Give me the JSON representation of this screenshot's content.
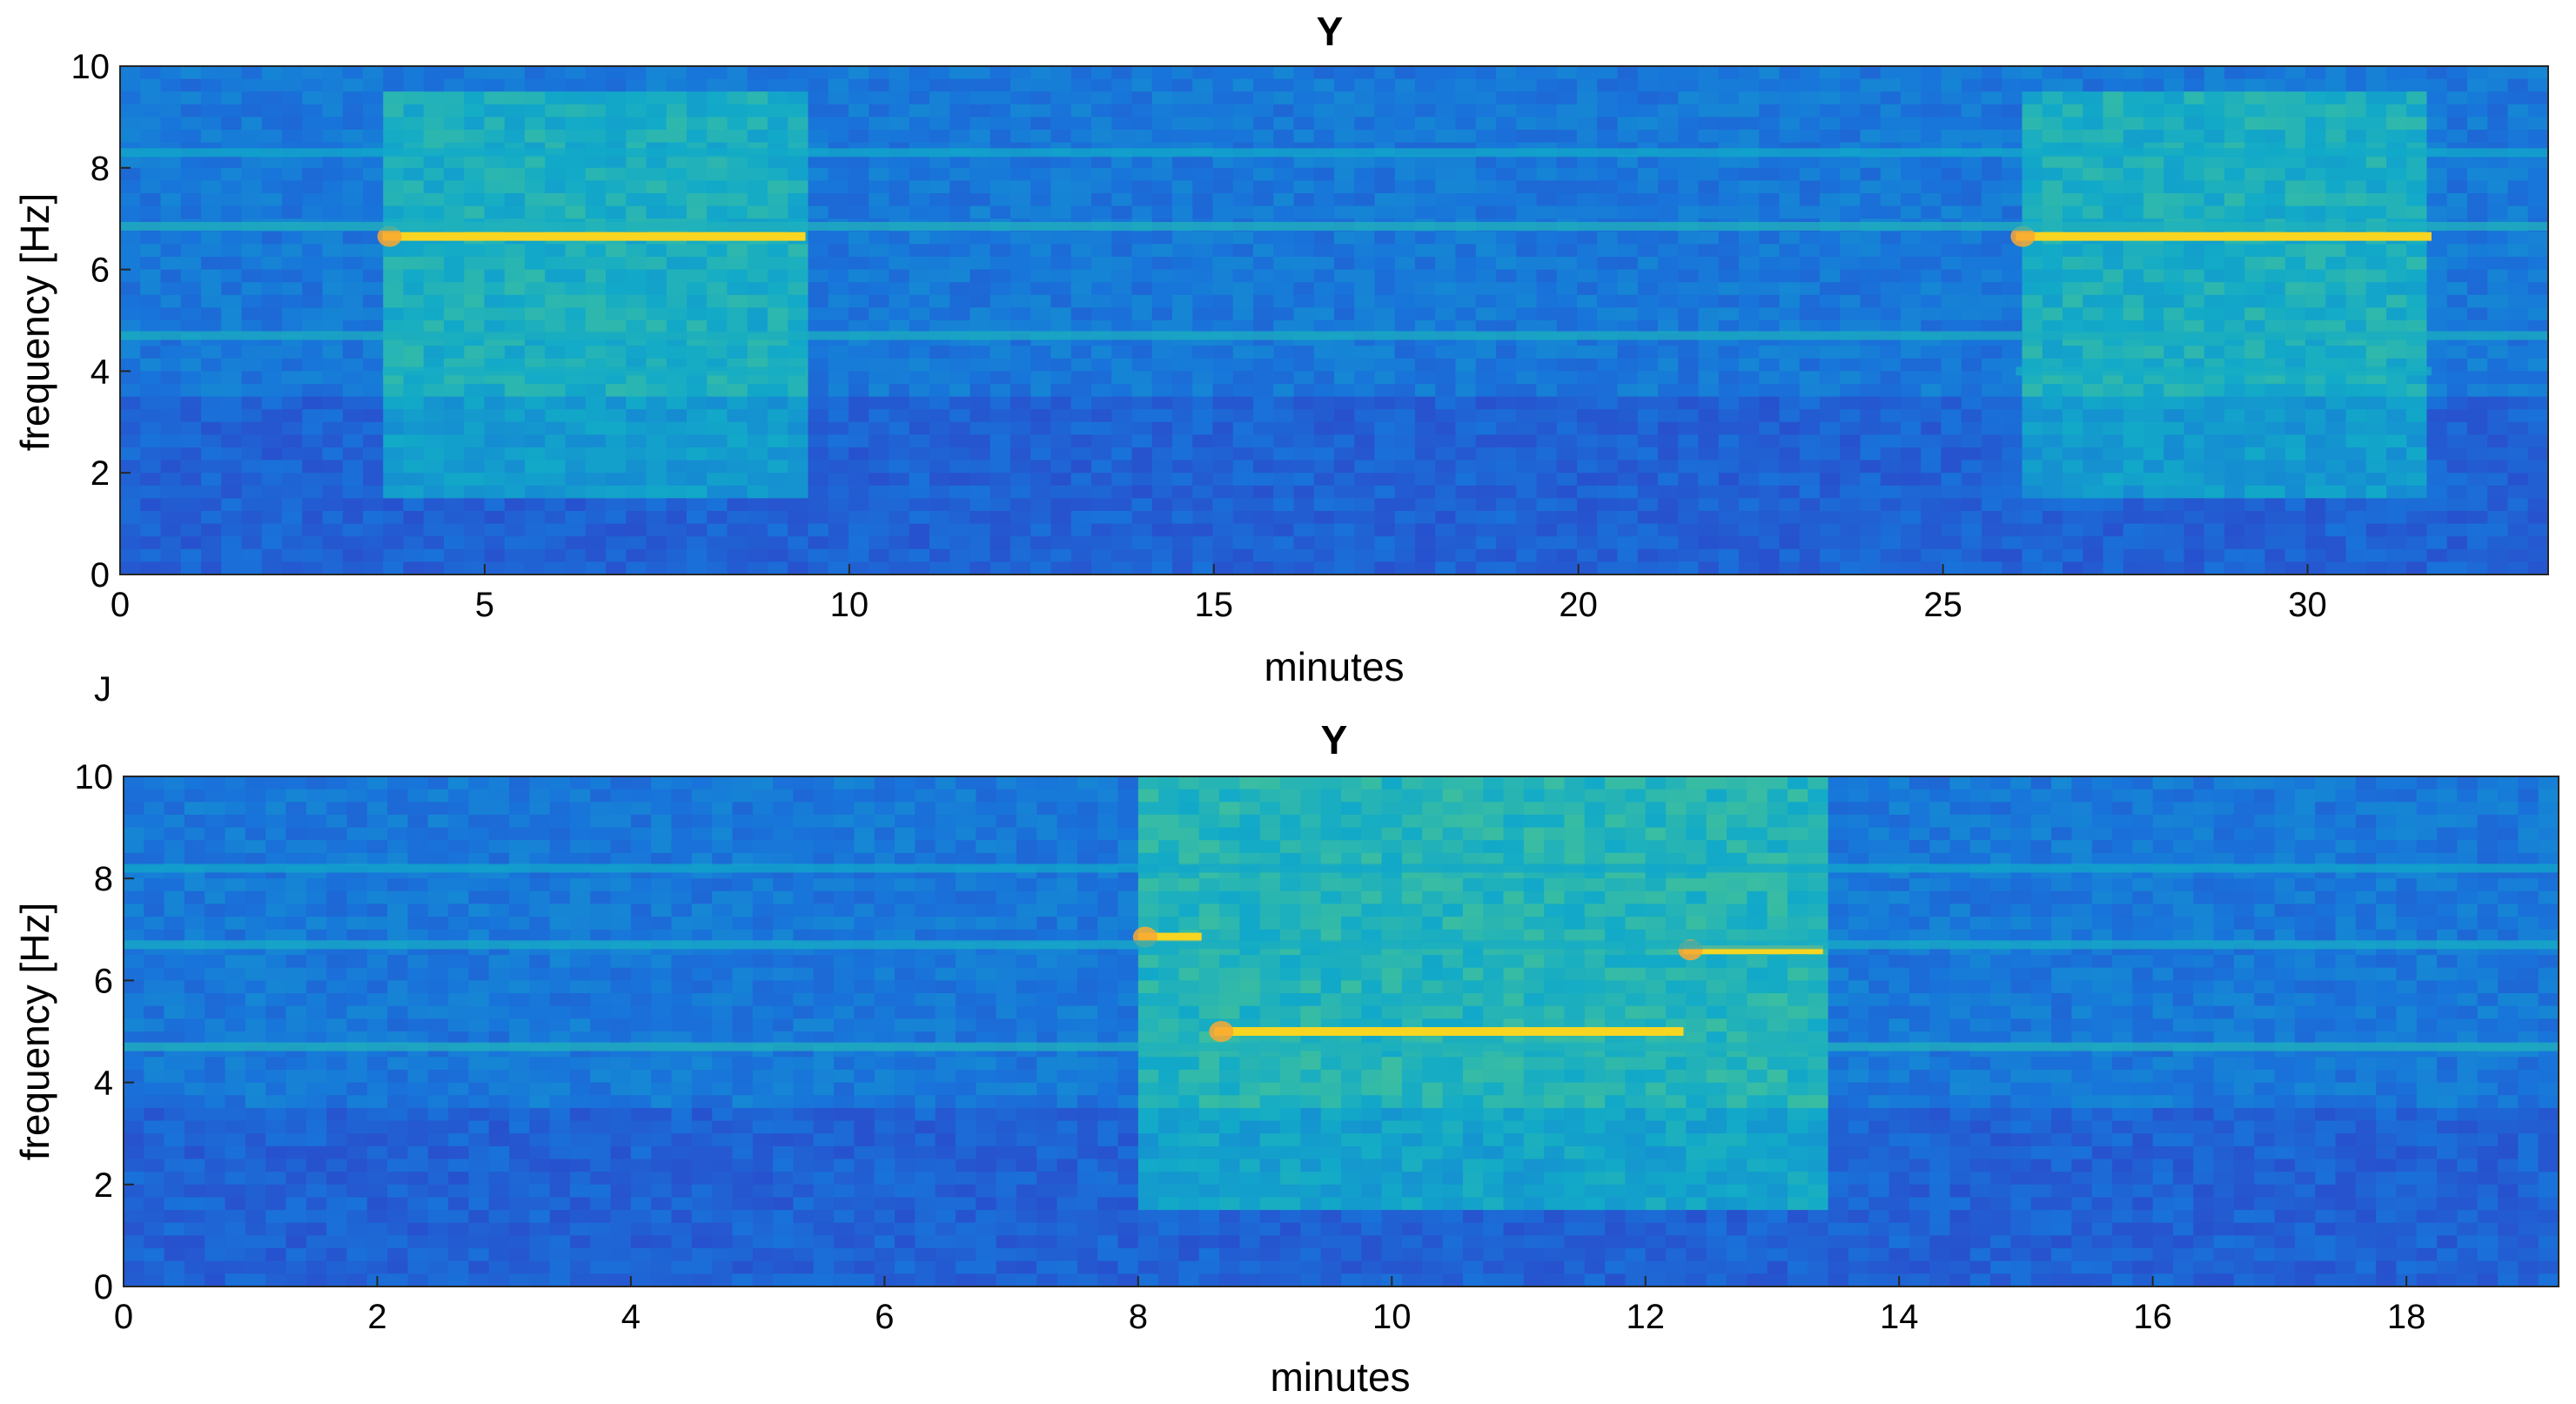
{
  "chart_data": [
    {
      "type": "heatmap",
      "title": "Y",
      "xlabel": "minutes",
      "ylabel": "frequency [Hz]",
      "xlim": [
        0,
        33.3
      ],
      "ylim": [
        0,
        10
      ],
      "xticks": [
        0,
        5,
        10,
        15,
        20,
        25,
        30
      ],
      "yticks": [
        0,
        2,
        4,
        6,
        8,
        10
      ],
      "colormap": "parula",
      "colors": {
        "low": "#3b3fd4",
        "mid": "#1fa6c8",
        "high": "#f5de1c",
        "peak": "#f9a832"
      },
      "features": [
        {
          "kind": "tone",
          "freq": 6.65,
          "t_start": 3.6,
          "t_end": 9.4,
          "level": 1.0
        },
        {
          "kind": "tone",
          "freq": 6.65,
          "t_start": 26.0,
          "t_end": 31.7,
          "level": 1.0
        },
        {
          "kind": "band",
          "freq": 6.85,
          "t_start": 0,
          "t_end": 33.3,
          "level": 0.55
        },
        {
          "kind": "band",
          "freq": 4.7,
          "t_start": 0,
          "t_end": 33.3,
          "level": 0.5
        },
        {
          "kind": "band",
          "freq": 8.3,
          "t_start": 0,
          "t_end": 33.3,
          "level": 0.4
        },
        {
          "kind": "band",
          "freq": 4.0,
          "t_start": 3.6,
          "t_end": 9.4,
          "level": 0.45
        },
        {
          "kind": "band",
          "freq": 4.0,
          "t_start": 26.0,
          "t_end": 31.7,
          "level": 0.45
        },
        {
          "kind": "block",
          "f_start": 1.5,
          "f_end": 9.5,
          "t_start": 3.6,
          "t_end": 9.4,
          "level": 0.35
        },
        {
          "kind": "block",
          "f_start": 1.5,
          "f_end": 9.5,
          "t_start": 26.0,
          "t_end": 31.7,
          "level": 0.35
        }
      ]
    },
    {
      "type": "heatmap",
      "title": "Y",
      "xlabel": "minutes",
      "ylabel": "frequency [Hz]",
      "xlim": [
        0,
        19.2
      ],
      "ylim": [
        0,
        10
      ],
      "xticks": [
        0,
        2,
        4,
        6,
        8,
        10,
        12,
        14,
        16,
        18
      ],
      "yticks": [
        0,
        2,
        4,
        6,
        8,
        10
      ],
      "colormap": "parula",
      "colors": {
        "low": "#3b3fd4",
        "mid": "#1fa6c8",
        "high": "#f5de1c",
        "peak": "#f9a832"
      },
      "features": [
        {
          "kind": "tone",
          "freq": 6.85,
          "t_start": 8.0,
          "t_end": 8.5,
          "level": 1.0
        },
        {
          "kind": "tone",
          "freq": 5.0,
          "t_start": 8.6,
          "t_end": 12.3,
          "level": 1.0
        },
        {
          "kind": "tone",
          "freq": 6.6,
          "t_start": 12.3,
          "t_end": 13.4,
          "level": 1.0
        },
        {
          "kind": "band",
          "freq": 4.7,
          "t_start": 0,
          "t_end": 19.2,
          "level": 0.55
        },
        {
          "kind": "band",
          "freq": 6.7,
          "t_start": 0,
          "t_end": 19.2,
          "level": 0.45
        },
        {
          "kind": "band",
          "freq": 8.2,
          "t_start": 0,
          "t_end": 19.2,
          "level": 0.35
        },
        {
          "kind": "block",
          "f_start": 1.5,
          "f_end": 10,
          "t_start": 8.0,
          "t_end": 13.4,
          "level": 0.4
        }
      ]
    }
  ],
  "cut_glyph": "J"
}
